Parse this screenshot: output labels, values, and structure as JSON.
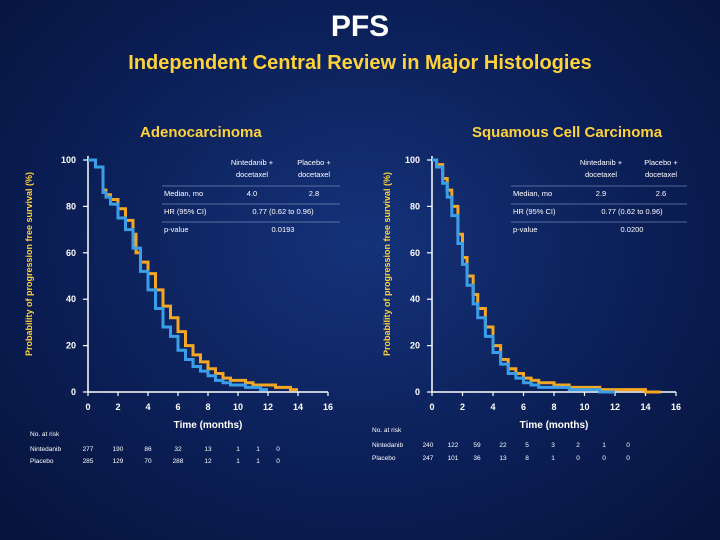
{
  "title": "PFS",
  "subtitle": "Independent Central Review in Major Histologies",
  "colors": {
    "nintedanib": "#f5a623",
    "placebo": "#3a9ee8",
    "accent": "#ffd23c"
  },
  "chart_data": [
    {
      "type": "line",
      "title": "Adenocarcinoma",
      "xlabel": "Time (months)",
      "ylabel": "Probability of progression free survival (%)",
      "xlim": [
        0,
        16
      ],
      "ylim": [
        0,
        100
      ],
      "xticks": [
        "0",
        "2",
        "4",
        "6",
        "8",
        "10",
        "12",
        "14",
        "16"
      ],
      "yticks": [
        "0",
        "20",
        "40",
        "60",
        "80",
        "100"
      ],
      "series": [
        {
          "key": "nintedanib",
          "x": [
            0,
            0.5,
            1,
            1.2,
            1.5,
            2,
            2.5,
            3,
            3.2,
            3.5,
            4,
            4.5,
            5,
            5.5,
            6,
            6.5,
            7,
            7.5,
            8,
            8.5,
            9,
            9.5,
            10,
            10.5,
            11,
            11.5,
            12,
            12.5,
            13,
            13.5,
            14
          ],
          "y": [
            100,
            97,
            87,
            85,
            83,
            79,
            74,
            68,
            60,
            56,
            51,
            44,
            37,
            32,
            26,
            20,
            16,
            13,
            10,
            8,
            6,
            5,
            5,
            4,
            3,
            3,
            3,
            2,
            2,
            1,
            1
          ]
        },
        {
          "key": "placebo",
          "x": [
            0,
            0.5,
            1,
            1.2,
            1.5,
            2,
            2.5,
            3,
            3.5,
            4,
            4.5,
            5,
            5.5,
            6,
            6.5,
            7,
            7.5,
            8,
            8.5,
            9,
            9.5,
            10,
            10.5,
            11,
            11.5,
            12
          ],
          "y": [
            100,
            97,
            86,
            84,
            81,
            75,
            70,
            62,
            52,
            44,
            36,
            28,
            24,
            18,
            14,
            11,
            9,
            7,
            5,
            4,
            3,
            3,
            2,
            2,
            1,
            1
          ]
        }
      ],
      "stats": {
        "col_nintedanib": "Nintedanib + docetaxel",
        "col_placebo": "Placebo + docetaxel",
        "rows": [
          {
            "label": "Median, mo",
            "nintedanib": "4.0",
            "placebo": "2.8"
          },
          {
            "label": "HR (95% CI)",
            "value": "0.77 (0.62 to 0.96)"
          },
          {
            "label": "p-value",
            "value": "0.0193"
          }
        ]
      },
      "at_risk": {
        "heading": "No. at risk",
        "rows": [
          {
            "label": "Nintedanib",
            "values": [
              "277",
              "190",
              "86",
              "32",
              "13",
              "1",
              "1",
              "0"
            ]
          },
          {
            "label": "Placebo",
            "values": [
              "285",
              "129",
              "70",
              "288",
              "12",
              "1",
              "1",
              "0"
            ]
          }
        ]
      }
    },
    {
      "type": "line",
      "title": "Squamous Cell Carcinoma",
      "xlabel": "Time (months)",
      "ylabel": "Probability of progression free survival (%)",
      "xlim": [
        0,
        16
      ],
      "ylim": [
        0,
        100
      ],
      "xticks": [
        "0",
        "2",
        "4",
        "6",
        "8",
        "10",
        "12",
        "14",
        "16"
      ],
      "yticks": [
        "0",
        "20",
        "40",
        "60",
        "80",
        "100"
      ],
      "series": [
        {
          "key": "nintedanib",
          "x": [
            0,
            0.3,
            0.7,
            1,
            1.3,
            1.7,
            2,
            2.3,
            2.7,
            3,
            3.5,
            4,
            4.5,
            5,
            5.5,
            6,
            6.5,
            7,
            8,
            9,
            10,
            11,
            12,
            13,
            14,
            15
          ],
          "y": [
            100,
            98,
            92,
            87,
            80,
            68,
            58,
            50,
            42,
            36,
            28,
            20,
            14,
            10,
            8,
            6,
            5,
            4,
            3,
            2,
            2,
            1,
            1,
            1,
            0,
            0
          ]
        },
        {
          "key": "placebo",
          "x": [
            0,
            0.3,
            0.7,
            1,
            1.3,
            1.7,
            2,
            2.3,
            2.7,
            3,
            3.5,
            4,
            4.5,
            5,
            5.5,
            6,
            6.5,
            7,
            8,
            9,
            10,
            11,
            12
          ],
          "y": [
            100,
            97,
            90,
            84,
            76,
            64,
            55,
            46,
            38,
            32,
            24,
            17,
            12,
            8,
            6,
            4,
            3,
            2,
            2,
            1,
            1,
            0,
            0
          ]
        }
      ],
      "stats": {
        "col_nintedanib": "Nintedanib + docetaxel",
        "col_placebo": "Placebo + docetaxel",
        "rows": [
          {
            "label": "Median, mo",
            "nintedanib": "2.9",
            "placebo": "2.6"
          },
          {
            "label": "HR (95% CI)",
            "value": "0.77 (0.62 to 0.96)"
          },
          {
            "label": "p-value",
            "value": "0.0200"
          }
        ]
      },
      "at_risk": {
        "heading": "No. at risk",
        "rows": [
          {
            "label": "Nintedanib",
            "values": [
              "240",
              "122",
              "59",
              "22",
              "5",
              "3",
              "2",
              "1",
              "0"
            ]
          },
          {
            "label": "Placebo",
            "values": [
              "247",
              "101",
              "36",
              "13",
              "8",
              "1",
              "0",
              "0",
              "0"
            ]
          }
        ]
      }
    }
  ]
}
